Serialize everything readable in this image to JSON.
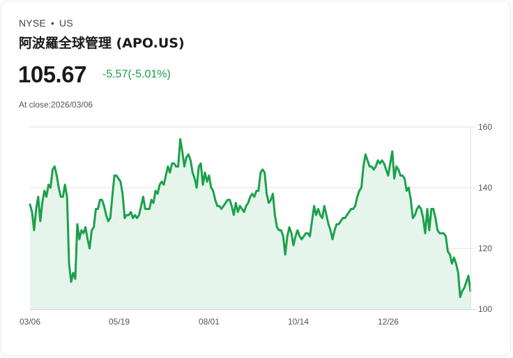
{
  "header": {
    "exchange": "NYSE",
    "separator": "•",
    "region": "US",
    "title": "阿波羅全球管理 (APO.US)",
    "price": "105.67",
    "change": "-5.57(-5.01%)",
    "close_label": "At close:2026/03/06"
  },
  "colors": {
    "line": "#1aa14a",
    "fill": "#e6f5ec",
    "grid": "#e2e2e2",
    "change_text": "#1aa14a"
  },
  "chart_data": {
    "type": "area",
    "title": "阿波羅全球管理 (APO.US)",
    "xlabel": "",
    "ylabel": "",
    "ylim": [
      100,
      160
    ],
    "yticks": [
      100,
      120,
      140,
      160
    ],
    "xticks": [
      "03/06",
      "05/19",
      "08/01",
      "10/14",
      "12/26"
    ],
    "grid": true,
    "legend": "none",
    "values": [
      134.5,
      132,
      126,
      133,
      137,
      129,
      135,
      139,
      137,
      141,
      140,
      146,
      147,
      144,
      140,
      137,
      137,
      141,
      137,
      115,
      109,
      112,
      110,
      128,
      123,
      126,
      125,
      127,
      123,
      120,
      126,
      127,
      133,
      133,
      136,
      136,
      134,
      131,
      129,
      130,
      137,
      144,
      144,
      143,
      142,
      138,
      130,
      131,
      131,
      132,
      130,
      131,
      130,
      131,
      134,
      137,
      133,
      133,
      133,
      136,
      135,
      139,
      138,
      141,
      142,
      141,
      144,
      147,
      145,
      148,
      148,
      147,
      147,
      156,
      152,
      147,
      150,
      151,
      149,
      145,
      143,
      140,
      147,
      148,
      141,
      145,
      142,
      144,
      140,
      139,
      136,
      134,
      134,
      133,
      134,
      135,
      136,
      136,
      134,
      131,
      135,
      132,
      134,
      133,
      132,
      134,
      135,
      137,
      138,
      137,
      139,
      139,
      145,
      146,
      145,
      138,
      135,
      136,
      138,
      131,
      127,
      126,
      126,
      124,
      118,
      124,
      127,
      125,
      121,
      124,
      126,
      124,
      123,
      124,
      125,
      125,
      124,
      129,
      134,
      131,
      133,
      131,
      130,
      134,
      131,
      128,
      126,
      123,
      126,
      128,
      128,
      129,
      130,
      130,
      131,
      132,
      133,
      133,
      134,
      137,
      139,
      140,
      147,
      151,
      149,
      147,
      147,
      146,
      147,
      149,
      148,
      149,
      148,
      146,
      144,
      148,
      152,
      143,
      147,
      146,
      144,
      144,
      143,
      139,
      140,
      136,
      130,
      131,
      133,
      134,
      133,
      130,
      125,
      133,
      126,
      133,
      133,
      130,
      126,
      125,
      125,
      125,
      124,
      119,
      118,
      115,
      117,
      115,
      112,
      104,
      106,
      107,
      109,
      111,
      106
    ]
  },
  "x_range": {
    "start": "03/06",
    "end": "2026/03/06"
  }
}
